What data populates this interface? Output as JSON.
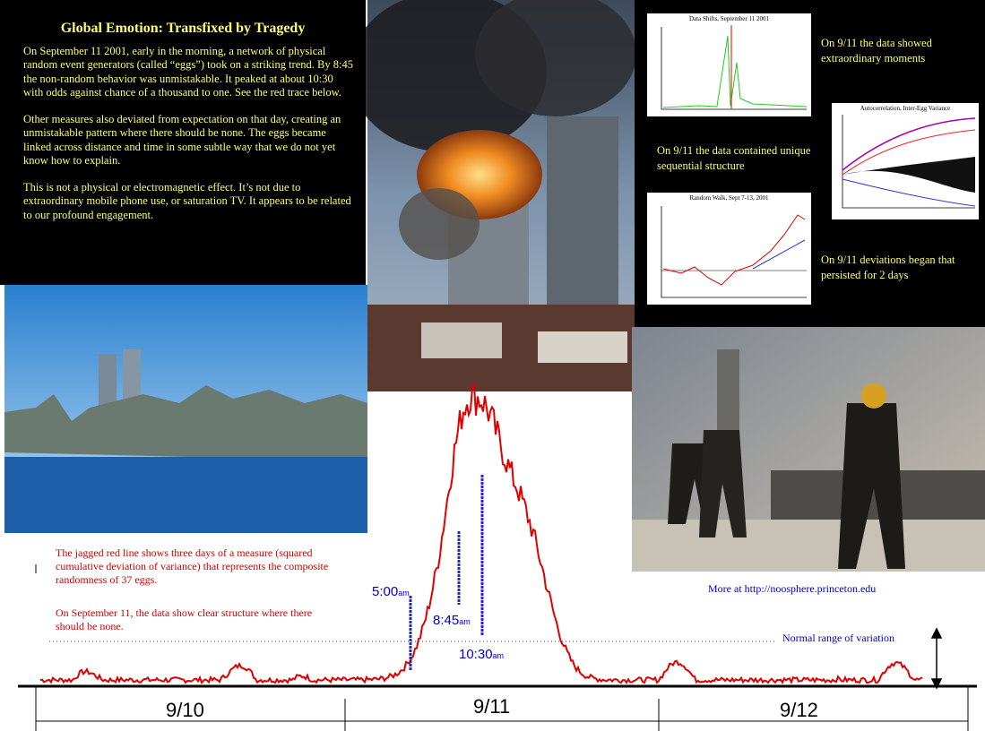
{
  "title": "Global Emotion: Transfixed by Tragedy",
  "paragraphs": [
    "On September 11 2001, early in the morning, a network of physical random event generators (called “eggs”) took on a striking trend. By 8:45 the non-random behavior was unmistakable. It peaked at about 10:30 with odds against chance of a thousand to one. See the red trace below.",
    "Other measures also deviated from expectation on that day, creating an unmistakable pattern where there should be none. The eggs became linked across distance and time in some subtle way that we do not yet know how to explain.",
    "This is not a physical or electromagnetic effect. It’s not due to extraordinary mobile phone use, or saturation TV. It appears to be related to our profound engagement."
  ],
  "mini_charts": [
    {
      "title": "Data Shifts, September 11 2001"
    },
    {
      "title": "Autocorrelation, Inter-Egg Variance"
    },
    {
      "title": "Random Walk, Sept 7-13, 2001"
    }
  ],
  "captions": [
    "On 9/11 the data showed extraordinary moments",
    "On 9/11 the data contained unique sequential structure",
    "On 9/11 deviations began that persisted for 2 days"
  ],
  "notes": [
    "The jagged red line shows three days of a measure (squared cumulative deviation of variance) that represents the composite randomness of 37 eggs.",
    "On September 11, the data show clear structure where there should be none."
  ],
  "link": "More at http://noosphere.princeton.edu",
  "normal_range": "Normal range of variation",
  "times": [
    {
      "time": "5:00",
      "suffix": "am"
    },
    {
      "time": "8:45",
      "suffix": "am"
    },
    {
      "time": "10:30",
      "suffix": "am"
    }
  ],
  "days": [
    "9/10",
    "9/11",
    "9/12"
  ]
}
